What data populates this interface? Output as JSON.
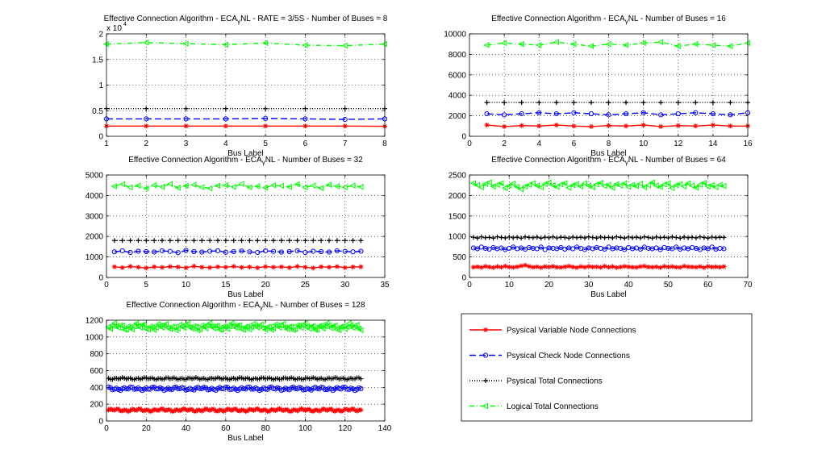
{
  "chart_data": [
    {
      "type": "line",
      "title": "Effective Connection Algorithm - ECA",
      "title_sub": "γ",
      "title_rest": "NL - RATE = 3/5S - Number of Buses = 8",
      "xlabel": "Bus Label",
      "ylabel": "",
      "xlim": [
        1,
        8
      ],
      "ylim": [
        0,
        20000
      ],
      "xticks": [
        1,
        2,
        3,
        4,
        5,
        6,
        7,
        8
      ],
      "yticks": [
        0,
        0.5,
        1,
        1.5,
        2
      ],
      "ytick_scale": 10000,
      "exponent_label": "x 10",
      "exponent_sup": "4",
      "grid": true,
      "x": [
        1,
        2,
        3,
        4,
        5,
        6,
        7,
        8
      ],
      "series": [
        {
          "key": "variable",
          "values": [
            2000,
            2000,
            2000,
            2000,
            2000,
            2000,
            2000,
            1950
          ]
        },
        {
          "key": "check",
          "values": [
            3400,
            3400,
            3400,
            3400,
            3500,
            3400,
            3300,
            3400
          ]
        },
        {
          "key": "total",
          "values": [
            5400,
            5400,
            5400,
            5400,
            5400,
            5400,
            5400,
            5400
          ]
        },
        {
          "key": "logical",
          "values": [
            18000,
            18300,
            18100,
            17900,
            18200,
            17800,
            17700,
            18000
          ]
        }
      ]
    },
    {
      "type": "line",
      "title": "Effective Connection Algorithm - ECA",
      "title_sub": "γ",
      "title_rest": "NL - Number of Buses = 16",
      "xlabel": "Bus Label",
      "ylabel": "",
      "xlim": [
        0,
        16
      ],
      "ylim": [
        0,
        10000
      ],
      "xticks": [
        0,
        2,
        4,
        6,
        8,
        10,
        12,
        14,
        16
      ],
      "yticks": [
        0,
        2000,
        4000,
        6000,
        8000,
        10000
      ],
      "grid": true,
      "x": [
        1,
        2,
        3,
        4,
        5,
        6,
        7,
        8,
        9,
        10,
        11,
        12,
        13,
        14,
        15,
        16
      ],
      "series": [
        {
          "key": "variable",
          "values": [
            1100,
            950,
            1050,
            1000,
            1100,
            1000,
            950,
            1050,
            1000,
            1100,
            950,
            1050,
            1000,
            1100,
            1000,
            1000
          ]
        },
        {
          "key": "check",
          "values": [
            2200,
            2100,
            2200,
            2300,
            2200,
            2300,
            2200,
            2100,
            2200,
            2300,
            2100,
            2200,
            2300,
            2200,
            2100,
            2300
          ]
        },
        {
          "key": "total",
          "values": [
            3300,
            3300,
            3300,
            3300,
            3300,
            3300,
            3300,
            3300,
            3300,
            3300,
            3300,
            3300,
            3300,
            3300,
            3300,
            3300
          ]
        },
        {
          "key": "logical",
          "values": [
            8900,
            9100,
            9000,
            8900,
            9200,
            9000,
            8800,
            9000,
            8900,
            9100,
            9200,
            8800,
            9000,
            8900,
            8800,
            9100
          ]
        }
      ]
    },
    {
      "type": "line",
      "title": "Effective Connection Algorithm - ECA",
      "title_sub": "γ",
      "title_rest": "NL - Number of Buses = 32",
      "xlabel": "Bus Label",
      "ylabel": "",
      "xlim": [
        0,
        35
      ],
      "ylim": [
        0,
        5000
      ],
      "xticks": [
        0,
        5,
        10,
        15,
        20,
        25,
        30,
        35
      ],
      "yticks": [
        0,
        1000,
        2000,
        3000,
        4000,
        5000
      ],
      "grid": true,
      "x_range": [
        1,
        32
      ],
      "series": [
        {
          "key": "variable",
          "values": [
            520,
            480,
            540,
            500,
            460,
            520,
            490,
            530,
            510,
            470,
            550,
            500,
            480,
            520,
            500,
            540,
            490,
            510,
            470,
            530,
            500,
            520,
            480,
            540,
            500,
            460,
            520,
            500,
            530,
            480,
            510,
            520
          ]
        },
        {
          "key": "check",
          "values": [
            1250,
            1300,
            1220,
            1280,
            1260,
            1240,
            1300,
            1270,
            1210,
            1320,
            1260,
            1240,
            1280,
            1300,
            1230,
            1260,
            1290,
            1250,
            1220,
            1300,
            1270,
            1240,
            1260,
            1300,
            1220,
            1280,
            1260,
            1240,
            1300,
            1270,
            1250,
            1280
          ]
        },
        {
          "key": "total",
          "values": [
            1800,
            1800,
            1800,
            1800,
            1800,
            1800,
            1800,
            1800,
            1800,
            1800,
            1800,
            1800,
            1800,
            1800,
            1800,
            1800,
            1800,
            1800,
            1800,
            1800,
            1800,
            1800,
            1800,
            1800,
            1800,
            1800,
            1800,
            1800,
            1800,
            1800,
            1800,
            1800
          ]
        },
        {
          "key": "logical",
          "values": [
            4450,
            4550,
            4400,
            4480,
            4350,
            4500,
            4420,
            4560,
            4380,
            4470,
            4520,
            4400,
            4350,
            4480,
            4500,
            4420,
            4560,
            4400,
            4450,
            4380,
            4500,
            4470,
            4420,
            4550,
            4400,
            4480,
            4360,
            4520,
            4450,
            4400,
            4480,
            4420
          ]
        }
      ]
    },
    {
      "type": "line",
      "title": "Effective Connection Algorithm - ECA",
      "title_sub": "γ",
      "title_rest": "NL - Number of Buses = 64",
      "xlabel": "Bus Label",
      "ylabel": "",
      "xlim": [
        0,
        70
      ],
      "ylim": [
        0,
        2500
      ],
      "xticks": [
        0,
        10,
        20,
        30,
        40,
        50,
        60,
        70
      ],
      "yticks": [
        0,
        500,
        1000,
        1500,
        2000,
        2500
      ],
      "grid": true,
      "x_range": [
        1,
        64
      ],
      "series": [
        {
          "key": "variable",
          "values": [
            250,
            260,
            245,
            270,
            255,
            240,
            265,
            250,
            275,
            255,
            245,
            260,
            280,
            300,
            270,
            250,
            260,
            240,
            265,
            255,
            270,
            250,
            245,
            260,
            275,
            255,
            240,
            265,
            250,
            270,
            255,
            260,
            245,
            275,
            250,
            265,
            240,
            255,
            270,
            260,
            250,
            245,
            265,
            275,
            255,
            250,
            260,
            240,
            270,
            255,
            265,
            250,
            245,
            275,
            260,
            255,
            250,
            265,
            240,
            270,
            255,
            260,
            250,
            265
          ]
        },
        {
          "key": "check",
          "values": [
            720,
            700,
            740,
            710,
            690,
            730,
            700,
            720,
            680,
            710,
            740,
            700,
            720,
            690,
            730,
            710,
            700,
            740,
            680,
            720,
            710,
            700,
            730,
            690,
            720,
            700,
            740,
            710,
            680,
            720,
            700,
            730,
            710,
            690,
            740,
            700,
            720,
            710,
            680,
            730,
            700,
            720,
            690,
            740,
            710,
            700,
            720,
            680,
            730,
            710,
            700,
            740,
            690,
            720,
            700,
            730,
            710,
            680,
            720,
            700,
            740,
            690,
            710,
            700
          ]
        },
        {
          "key": "total",
          "values": [
            980,
            960,
            990,
            970,
            980,
            960,
            990,
            975,
            965,
            985,
            970,
            980,
            960,
            990,
            975,
            970,
            985,
            960,
            980,
            970,
            990,
            965,
            980,
            975,
            960,
            985,
            970,
            980,
            965,
            990,
            975,
            960,
            985,
            970,
            980,
            965,
            990,
            975,
            960,
            985,
            970,
            980,
            965,
            990,
            975,
            960,
            985,
            970,
            980,
            965,
            990,
            975,
            960,
            985,
            970,
            980,
            965,
            990,
            975,
            960,
            985,
            970,
            980,
            975
          ]
        },
        {
          "key": "logical",
          "values": [
            2300,
            2250,
            2200,
            2280,
            2320,
            2220,
            2260,
            2300,
            2180,
            2240,
            2290,
            2210,
            2150,
            2220,
            2260,
            2300,
            2240,
            2200,
            2280,
            2320,
            2250,
            2210,
            2270,
            2300,
            2190,
            2250,
            2280,
            2220,
            2300,
            2240,
            2200,
            2270,
            2310,
            2230,
            2260,
            2190,
            2280,
            2240,
            2300,
            2210,
            2260,
            2230,
            2290,
            2200,
            2250,
            2320,
            2240,
            2210,
            2270,
            2300,
            2180,
            2250,
            2280,
            2220,
            2300,
            2240,
            2190,
            2260,
            2310,
            2220,
            2250,
            2200,
            2260,
            2230
          ]
        }
      ]
    },
    {
      "type": "line",
      "title": "Effective Connection Algorithm - ECA",
      "title_sub": "γ",
      "title_rest": "NL - Number of Buses = 128",
      "xlabel": "Bus Label",
      "ylabel": "",
      "xlim": [
        0,
        140
      ],
      "ylim": [
        0,
        1200
      ],
      "xticks": [
        0,
        20,
        40,
        60,
        80,
        100,
        120,
        140
      ],
      "yticks": [
        0,
        200,
        400,
        600,
        800,
        1000,
        1200
      ],
      "grid": true,
      "x_range": [
        1,
        128
      ],
      "series": [
        {
          "key": "variable",
          "base": 130,
          "amp": 18
        },
        {
          "key": "check",
          "base": 385,
          "amp": 22
        },
        {
          "key": "total",
          "base": 505,
          "amp": 12
        },
        {
          "key": "logical",
          "base": 1120,
          "amp": 45
        }
      ]
    }
  ],
  "legend": {
    "placement": "bottom-right",
    "entries": [
      {
        "key": "variable",
        "label": "Psysical Variable Node Connections",
        "color": "#ff0000",
        "dash": "",
        "marker": "star"
      },
      {
        "key": "check",
        "label": "Psysical Check Node Connections",
        "color": "#0000ff",
        "dash": "8,4",
        "marker": "circle"
      },
      {
        "key": "total",
        "label": "Psysical Total Connections",
        "color": "#000000",
        "dash": "1,2",
        "marker": "plus"
      },
      {
        "key": "logical",
        "label": "Logical Total Connections",
        "color": "#00ff00",
        "dash": "6,3,1,3",
        "marker": "triangle-left"
      }
    ]
  }
}
